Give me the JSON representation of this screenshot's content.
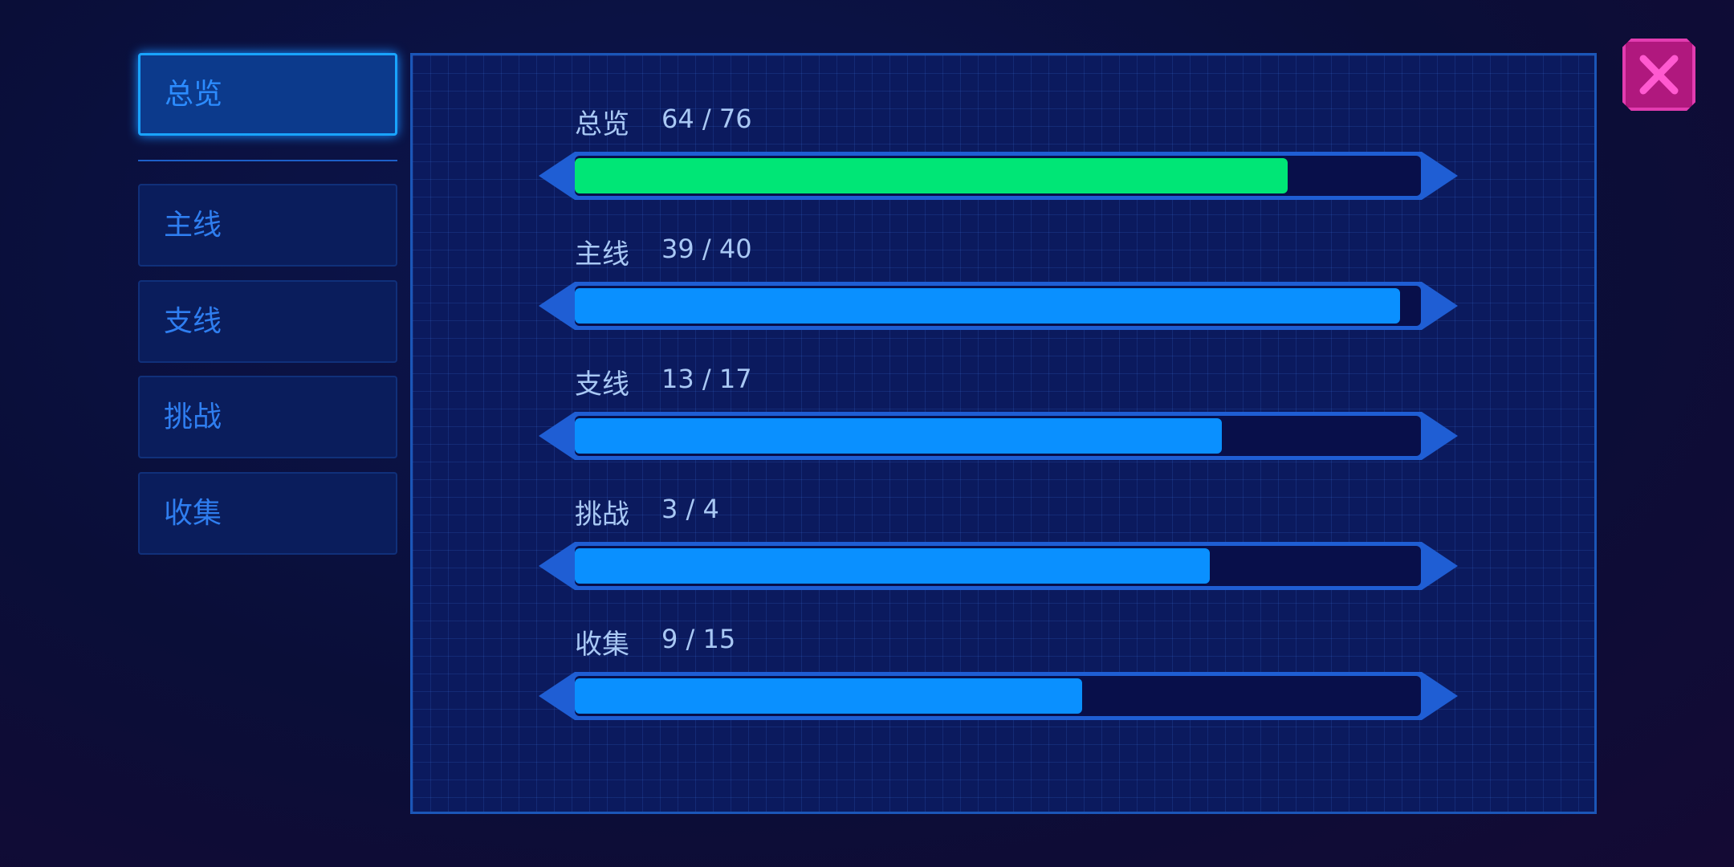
{
  "tabs": [
    {
      "label": "总览",
      "active": true
    },
    {
      "label": "主线",
      "active": false
    },
    {
      "label": "支线",
      "active": false
    },
    {
      "label": "挑战",
      "active": false
    },
    {
      "label": "收集",
      "active": false
    }
  ],
  "rows": [
    {
      "label": "总览",
      "done": 64,
      "total": 76,
      "text": "64 / 76",
      "color": "#00e676"
    },
    {
      "label": "主线",
      "done": 39,
      "total": 40,
      "text": "39 / 40",
      "color": "#0a90ff"
    },
    {
      "label": "支线",
      "done": 13,
      "total": 17,
      "text": "13 / 17",
      "color": "#0a90ff"
    },
    {
      "label": "挑战",
      "done": 3,
      "total": 4,
      "text": "3 / 4",
      "color": "#0a90ff"
    },
    {
      "label": "收集",
      "done": 9,
      "total": 15,
      "text": "9 / 15",
      "color": "#0a90ff"
    }
  ]
}
